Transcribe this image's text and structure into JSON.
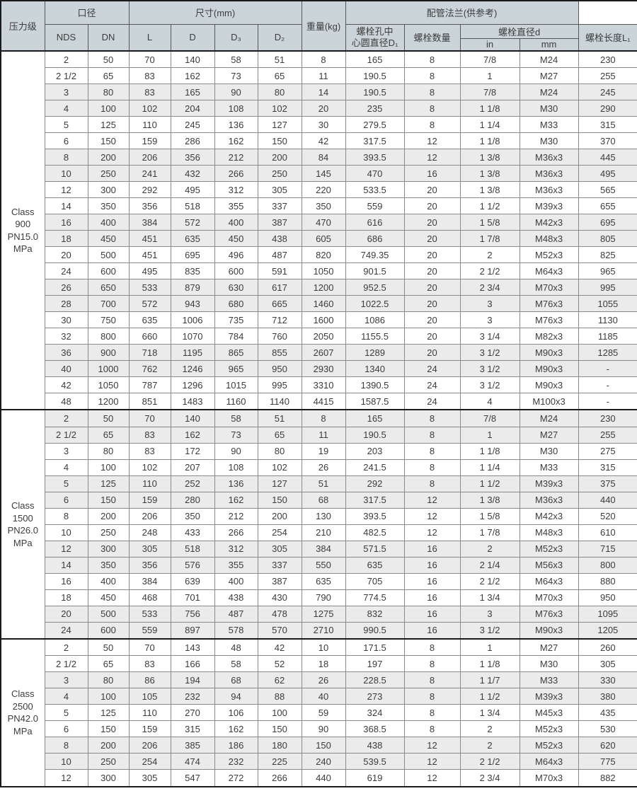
{
  "table": {
    "header": {
      "pressure_class": "压力级",
      "bore": "口径",
      "nds": "NDS",
      "dn": "DN",
      "dimensions": "尺寸(mm)",
      "l": "L",
      "d": "D",
      "d3": "D₃",
      "d2": "D₂",
      "weight": "重量(kg)",
      "flange_ref": "配管法兰(供参考)",
      "bolt_circle": "螺栓孔中\n心圆直径D₁",
      "bolt_count": "螺栓数量",
      "bolt_dia": "螺栓直径d",
      "bolt_dia_in": "in",
      "bolt_dia_mm": "mm",
      "bolt_length": "螺栓长度L₁"
    },
    "sections": [
      {
        "label": "Class\n900\nPN15.0\nMPa",
        "rows": [
          [
            "2",
            "50",
            "70",
            "140",
            "58",
            "51",
            "8",
            "165",
            "8",
            "7/8",
            "M24",
            "230"
          ],
          [
            "2 1/2",
            "65",
            "83",
            "162",
            "73",
            "65",
            "11",
            "190.5",
            "8",
            "1",
            "M27",
            "255"
          ],
          [
            "3",
            "80",
            "83",
            "165",
            "90",
            "80",
            "14",
            "190.5",
            "8",
            "7/8",
            "M24",
            "245"
          ],
          [
            "4",
            "100",
            "102",
            "204",
            "108",
            "102",
            "20",
            "235",
            "8",
            "1 1/8",
            "M30",
            "290"
          ],
          [
            "5",
            "125",
            "110",
            "245",
            "136",
            "127",
            "30",
            "279.5",
            "8",
            "1 1/4",
            "M33",
            "315"
          ],
          [
            "6",
            "150",
            "159",
            "286",
            "162",
            "150",
            "42",
            "317.5",
            "12",
            "1 1/8",
            "M30",
            "370"
          ],
          [
            "8",
            "200",
            "206",
            "356",
            "212",
            "200",
            "84",
            "393.5",
            "12",
            "1 3/8",
            "M36x3",
            "445"
          ],
          [
            "10",
            "250",
            "241",
            "432",
            "266",
            "250",
            "145",
            "470",
            "16",
            "1 3/8",
            "M36x3",
            "495"
          ],
          [
            "12",
            "300",
            "292",
            "495",
            "312",
            "305",
            "220",
            "533.5",
            "20",
            "1 3/8",
            "M36x3",
            "565"
          ],
          [
            "14",
            "350",
            "356",
            "518",
            "355",
            "337",
            "350",
            "559",
            "20",
            "1 1/2",
            "M39x3",
            "655"
          ],
          [
            "16",
            "400",
            "384",
            "572",
            "400",
            "387",
            "470",
            "616",
            "20",
            "1 5/8",
            "M42x3",
            "695"
          ],
          [
            "18",
            "450",
            "451",
            "635",
            "450",
            "438",
            "605",
            "686",
            "20",
            "1 7/8",
            "M48x3",
            "805"
          ],
          [
            "20",
            "500",
            "451",
            "695",
            "496",
            "487",
            "820",
            "749.35",
            "20",
            "2",
            "M52x3",
            "825"
          ],
          [
            "24",
            "600",
            "495",
            "835",
            "600",
            "591",
            "1050",
            "901.5",
            "20",
            "2 1/2",
            "M64x3",
            "965"
          ],
          [
            "26",
            "650",
            "533",
            "879",
            "630",
            "617",
            "1200",
            "952.5",
            "20",
            "2 3/4",
            "M70x3",
            "995"
          ],
          [
            "28",
            "700",
            "572",
            "943",
            "680",
            "665",
            "1460",
            "1022.5",
            "20",
            "3",
            "M76x3",
            "1055"
          ],
          [
            "30",
            "750",
            "635",
            "1006",
            "735",
            "712",
            "1600",
            "1086",
            "20",
            "3",
            "M76x3",
            "1130"
          ],
          [
            "32",
            "800",
            "660",
            "1070",
            "784",
            "760",
            "2050",
            "1155.5",
            "20",
            "3 1/4",
            "M82x3",
            "1185"
          ],
          [
            "36",
            "900",
            "718",
            "1195",
            "865",
            "855",
            "2607",
            "1289",
            "20",
            "3 1/2",
            "M90x3",
            "1285"
          ],
          [
            "40",
            "1000",
            "762",
            "1246",
            "965",
            "950",
            "2930",
            "1340",
            "24",
            "3 1/2",
            "M90x3",
            "-"
          ],
          [
            "42",
            "1050",
            "787",
            "1296",
            "1015",
            "995",
            "3310",
            "1390.5",
            "24",
            "3 1/2",
            "M90x3",
            "-"
          ],
          [
            "48",
            "1200",
            "851",
            "1483",
            "1160",
            "1140",
            "4415",
            "1587.5",
            "24",
            "4",
            "M100x3",
            "-"
          ]
        ]
      },
      {
        "label": "Class\n1500\nPN26.0\nMPa",
        "rows": [
          [
            "2",
            "50",
            "70",
            "140",
            "58",
            "51",
            "8",
            "165",
            "8",
            "7/8",
            "M24",
            "230"
          ],
          [
            "2 1/2",
            "65",
            "83",
            "162",
            "73",
            "65",
            "11",
            "190.5",
            "8",
            "1",
            "M27",
            "255"
          ],
          [
            "3",
            "80",
            "83",
            "172",
            "90",
            "80",
            "19",
            "203",
            "8",
            "1 1/8",
            "M30",
            "275"
          ],
          [
            "4",
            "100",
            "102",
            "207",
            "108",
            "102",
            "26",
            "241.5",
            "8",
            "1 1/4",
            "M33",
            "315"
          ],
          [
            "5",
            "125",
            "110",
            "252",
            "136",
            "127",
            "51",
            "292",
            "8",
            "1 1/2",
            "M39x3",
            "375"
          ],
          [
            "6",
            "150",
            "159",
            "280",
            "162",
            "150",
            "68",
            "317.5",
            "12",
            "1 3/8",
            "M36x3",
            "440"
          ],
          [
            "8",
            "200",
            "206",
            "350",
            "212",
            "200",
            "130",
            "393.5",
            "12",
            "1 5/8",
            "M42x3",
            "520"
          ],
          [
            "10",
            "250",
            "248",
            "433",
            "266",
            "254",
            "210",
            "482.5",
            "12",
            "1 7/8",
            "M48x3",
            "610"
          ],
          [
            "12",
            "300",
            "305",
            "518",
            "312",
            "305",
            "384",
            "571.5",
            "16",
            "2",
            "M52x3",
            "715"
          ],
          [
            "14",
            "350",
            "356",
            "576",
            "355",
            "337",
            "550",
            "635",
            "16",
            "2 1/4",
            "M56x3",
            "800"
          ],
          [
            "16",
            "400",
            "384",
            "639",
            "400",
            "387",
            "635",
            "705",
            "16",
            "2 1/2",
            "M64x3",
            "880"
          ],
          [
            "18",
            "450",
            "468",
            "701",
            "438",
            "430",
            "790",
            "774.5",
            "16",
            "1 3/4",
            "M70x3",
            "950"
          ],
          [
            "20",
            "500",
            "533",
            "756",
            "487",
            "478",
            "1275",
            "832",
            "16",
            "3",
            "M76x3",
            "1095"
          ],
          [
            "24",
            "600",
            "559",
            "897",
            "578",
            "570",
            "2710",
            "990.5",
            "16",
            "3 1/2",
            "M90x3",
            "1205"
          ]
        ]
      },
      {
        "label": "Class\n2500\nPN42.0\nMPa",
        "rows": [
          [
            "2",
            "50",
            "70",
            "143",
            "48",
            "42",
            "10",
            "171.5",
            "8",
            "1",
            "M27",
            "260"
          ],
          [
            "2 1/2",
            "65",
            "83",
            "166",
            "58",
            "52",
            "18",
            "197",
            "8",
            "1 1/8",
            "M30",
            "305"
          ],
          [
            "3",
            "80",
            "86",
            "194",
            "68",
            "62",
            "26",
            "228.5",
            "8",
            "1 1/7",
            "M33",
            "330"
          ],
          [
            "4",
            "100",
            "105",
            "232",
            "94",
            "88",
            "40",
            "273",
            "8",
            "1 1/2",
            "M39x3",
            "380"
          ],
          [
            "5",
            "125",
            "110",
            "270",
            "106",
            "100",
            "59",
            "324",
            "8",
            "1 3/4",
            "M45x3",
            "435"
          ],
          [
            "6",
            "150",
            "159",
            "315",
            "162",
            "150",
            "90",
            "368.5",
            "8",
            "2",
            "M52x3",
            "530"
          ],
          [
            "8",
            "200",
            "206",
            "385",
            "186",
            "180",
            "150",
            "438",
            "12",
            "2",
            "M52x3",
            "620"
          ],
          [
            "10",
            "250",
            "254",
            "474",
            "232",
            "225",
            "240",
            "539.5",
            "12",
            "2 1/2",
            "M64x3",
            "775"
          ],
          [
            "12",
            "300",
            "305",
            "547",
            "272",
            "266",
            "440",
            "619",
            "12",
            "2 3/4",
            "M70x3",
            "882"
          ]
        ]
      }
    ]
  },
  "colors": {
    "header_bg": "#cbd5d9",
    "row_shaded": "#ebebeb",
    "row_plain": "#ffffff",
    "border_dark": "#1a1a1a",
    "border_light": "#8a8a8a",
    "text": "#3c3c3c"
  }
}
